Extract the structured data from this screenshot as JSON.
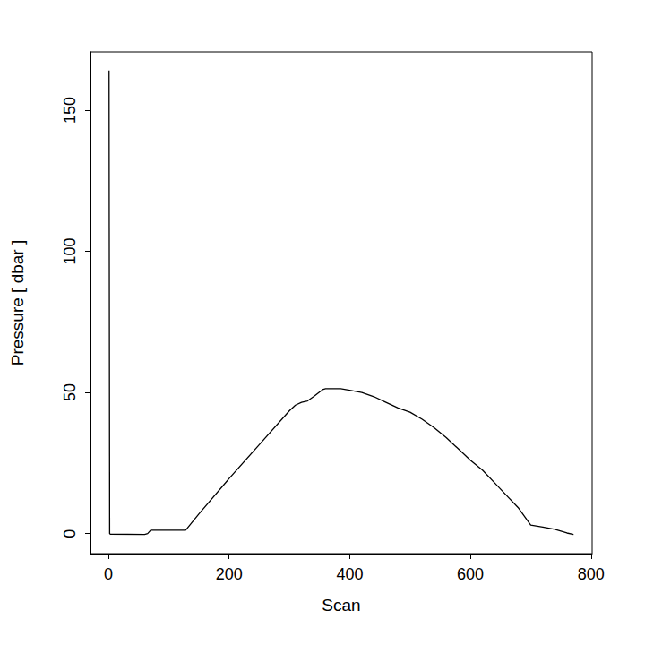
{
  "chart_data": {
    "type": "line",
    "x_label": "Scan",
    "y_label": "Pressure [ dbar ]",
    "x": [
      1,
      2,
      3,
      60,
      65,
      70,
      128,
      150,
      200,
      250,
      300,
      310,
      320,
      330,
      340,
      355,
      360,
      385,
      400,
      420,
      440,
      460,
      480,
      500,
      520,
      540,
      560,
      580,
      600,
      620,
      640,
      660,
      680,
      700,
      720,
      740,
      760,
      771
    ],
    "values": [
      164,
      0,
      -0.2,
      -0.3,
      0,
      1.2,
      1.2,
      7,
      19.5,
      31.5,
      43.5,
      45.5,
      46.5,
      47,
      48.5,
      51,
      51.3,
      51.3,
      50.8,
      50,
      48.5,
      46.5,
      44.5,
      43,
      40.5,
      37.5,
      34,
      30,
      26,
      22.5,
      18,
      13.5,
      9,
      3,
      2.3,
      1.5,
      0.2,
      -0.3
    ],
    "color": "#000000",
    "xlim": [
      -29.8,
      801.8
    ],
    "xticks": [
      0,
      200,
      400,
      600,
      800
    ],
    "ylim": [
      -7.1,
      170.6
    ],
    "yticks": [
      0,
      50,
      100,
      150
    ],
    "grid": false
  }
}
